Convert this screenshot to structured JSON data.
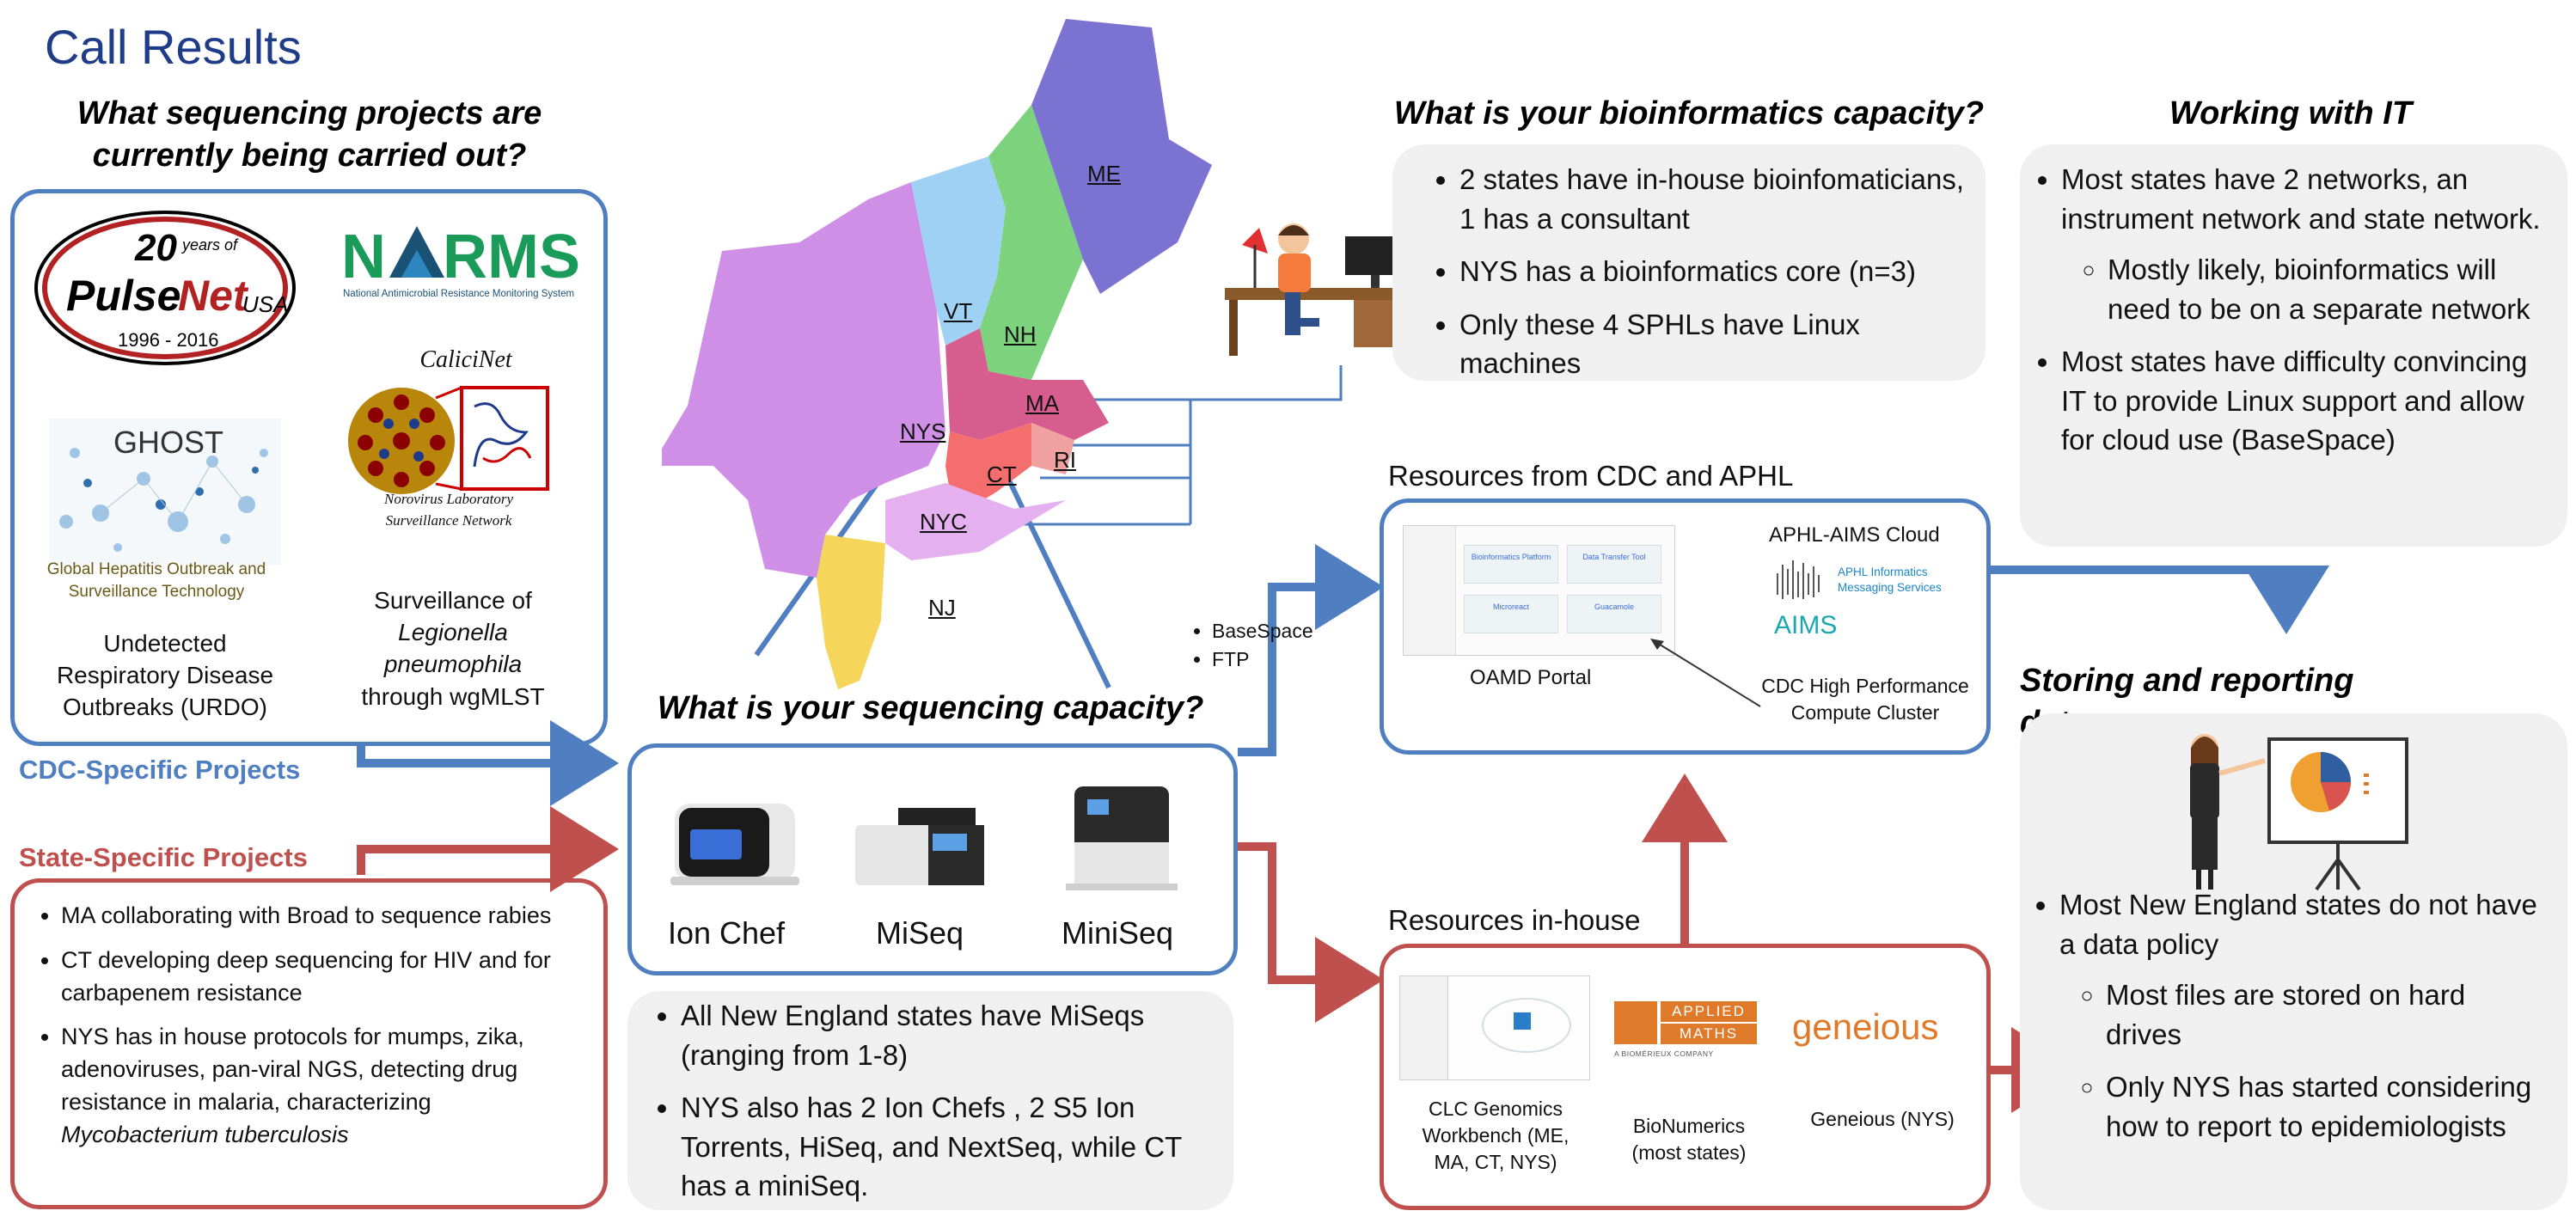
{
  "title": "Call Results",
  "seq_projects": {
    "heading_line1": "What sequencing projects are",
    "heading_line2": "currently being carried out?",
    "pulsenet_logo_text": "20 years of PulseNet USA 1996 - 2016",
    "narms_logo_text": "NARMS",
    "narms_sub": "National Antimicrobial Resistance Monitoring System",
    "calicinet_title": "CaliciNet",
    "calicinet_sub1": "Norovirus Laboratory",
    "calicinet_sub2": "Surveillance Network",
    "ghost_title": "GHOST",
    "ghost_sub1": "Global Hepatitis Outbreak and",
    "ghost_sub2": "Surveillance Technology",
    "urdo_line1": "Undetected",
    "urdo_line2": "Respiratory Disease",
    "urdo_line3": "Outbreaks (URDO)",
    "legionella_line1": "Surveillance of",
    "legionella_line2": "Legionella",
    "legionella_line3": "pneumophila",
    "legionella_line4": "through wgMLST"
  },
  "cdc_label": "CDC-Specific Projects",
  "state_label": "State-Specific Projects",
  "state_projects": [
    "MA collaborating with Broad to sequence rabies",
    "CT developing deep sequencing for HIV and for carbapenem resistance",
    "NYS has in house protocols for mumps, zika, adenoviruses, pan-viral NGS, detecting drug resistance in malaria, characterizing"
  ],
  "state_projects_tail": "Mycobacterium tuberculosis",
  "map": {
    "labels": [
      "ME",
      "VT",
      "NH",
      "MA",
      "NYS",
      "RI",
      "CT",
      "NYC",
      "NJ"
    ]
  },
  "bioinf": {
    "heading": "What is your bioinformatics capacity?",
    "items": [
      "2 states have in-house bioinfomaticians, 1 has a consultant",
      "NYS has a bioinformatics core (n=3)",
      "Only these 4 SPHLs have Linux machines"
    ]
  },
  "it": {
    "heading": "Working with IT",
    "item1": "Most states have 2 networks, an instrument network and state network.",
    "sub1": "Mostly likely, bioinformatics will need to be on a separate network",
    "item2": "Most states have difficulty convincing IT to provide Linux support and allow for cloud use (BaseSpace)"
  },
  "seq_capacity": {
    "heading": "What is your sequencing capacity?",
    "instruments": [
      "Ion Chef",
      "MiSeq",
      "MiniSeq"
    ],
    "items": [
      "All New England states have MiSeqs (ranging from 1-8)",
      "NYS also has 2 Ion Chefs , 2 S5 Ion Torrents, HiSeq, and NextSeq, while  CT has a miniSeq."
    ]
  },
  "transfer": [
    "BaseSpace",
    "FTP"
  ],
  "cdc_resources": {
    "label": "Resources from CDC and APHL",
    "portal_label": "OAMD Portal",
    "portal_tiles": [
      "Bioinformatics Platform",
      "Data Transfer Tool",
      "Microreact",
      "Guacamole"
    ],
    "cloud_label": "APHL-AIMS Cloud",
    "aims_logo": "AIMS",
    "aims_sub1": "APHL Informatics",
    "aims_sub2": "Messaging Services",
    "cluster_line1": "CDC High Performance",
    "cluster_line2": "Compute Cluster"
  },
  "inhouse": {
    "label": "Resources in-house",
    "clc_line1": "CLC Genomics",
    "clc_line2": "Workbench (ME,",
    "clc_line3": "MA, CT, NYS)",
    "applied_maths_l1": "APPLIED",
    "applied_maths_l2": "MATHS",
    "applied_maths_sub": "A BIOMÉRIEUX COMPANY",
    "bionumerics_line1": "BioNumerics",
    "bionumerics_line2": "(most states)",
    "geneious_logo": "geneious",
    "geneious_label": "Geneious (NYS)"
  },
  "storing": {
    "heading": "Storing and reporting data",
    "item1": "Most New England states do not have a data policy",
    "sub1": "Most files are stored on hard drives",
    "sub2": "Only NYS has started considering how to report to epidemiologists"
  },
  "colors": {
    "title": "#1f3c88",
    "blue": "#4f7fc1",
    "red": "#c0504d",
    "gray_box": "#f0f0f0",
    "me": "#7b72d1",
    "vt": "#9fd1f5",
    "nh": "#7dd37d",
    "ma": "#d65d8e",
    "nys": "#cf8fe6",
    "ri": "#f0a0a0",
    "ct": "#f46e6e",
    "nyc": "#e5b0f0",
    "nj": "#f5d55a"
  }
}
